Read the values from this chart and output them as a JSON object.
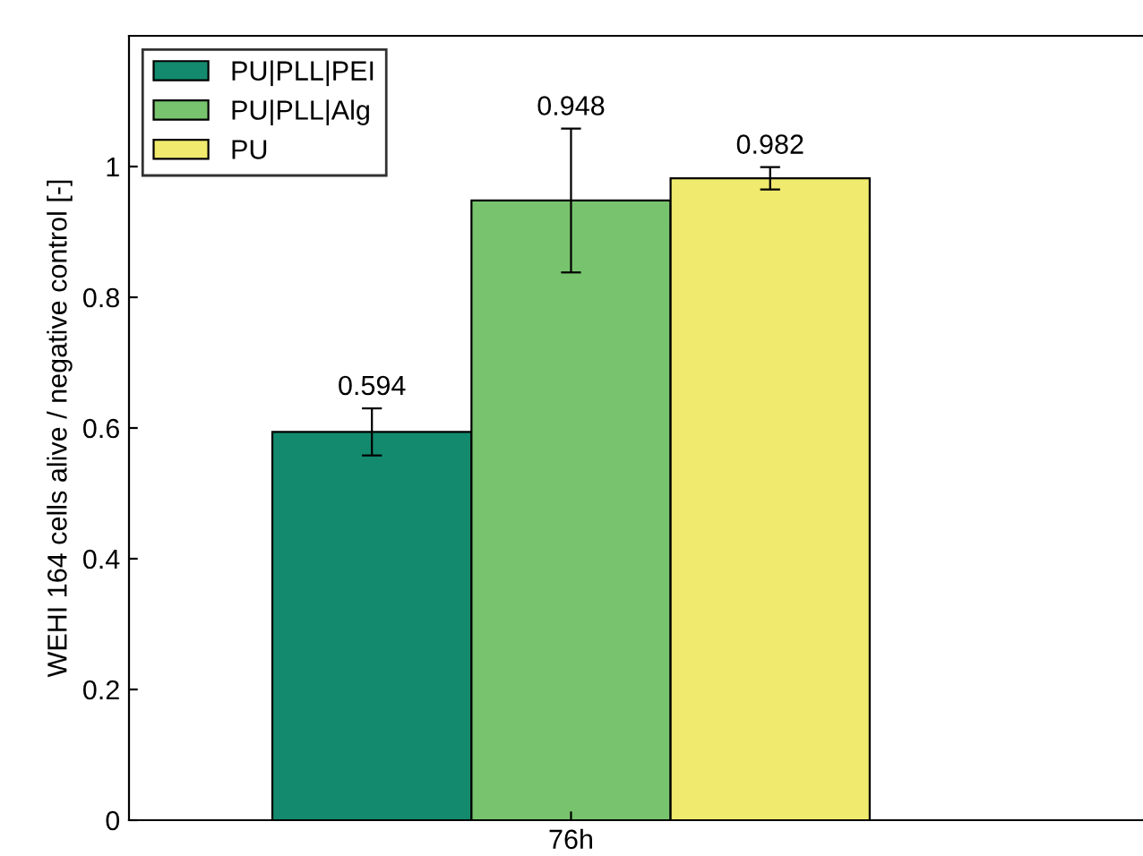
{
  "chart_data": {
    "type": "bar",
    "ylabel": "WEHI 164 cells alive / negative control [-]",
    "categories": [
      "76h"
    ],
    "series": [
      {
        "name": "PU|PLL|PEI",
        "color": "#138a6e",
        "values": [
          0.594
        ],
        "errors": [
          0.036
        ]
      },
      {
        "name": "PU|PLL|Alg",
        "color": "#78c46e",
        "values": [
          0.948
        ],
        "errors": [
          0.11
        ]
      },
      {
        "name": "PU",
        "color": "#f0ea6e",
        "values": [
          0.982
        ],
        "errors": [
          0.017
        ]
      }
    ],
    "data_labels": true,
    "ylim": [
      0,
      1.2
    ],
    "yticks": [
      0,
      0.2,
      0.4,
      0.6,
      0.8,
      1
    ],
    "grid": false,
    "legend": "top left"
  }
}
